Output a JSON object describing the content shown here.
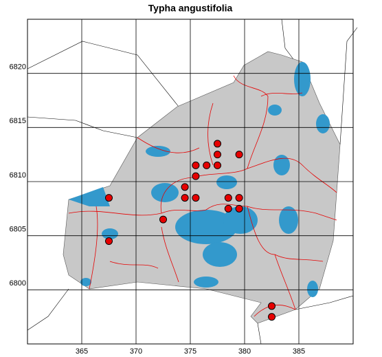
{
  "chart_data": {
    "type": "scatter",
    "title": "Typha angustifolia",
    "x": [
      367.5,
      367.5,
      372.5,
      374.5,
      374.5,
      375.5,
      375.5,
      375.5,
      376.5,
      377.5,
      377.5,
      377.5,
      379.5,
      378.5,
      378.5,
      379.5,
      379.5,
      382.5,
      382.5
    ],
    "values": [
      6808.5,
      6804.5,
      6806.5,
      6809.5,
      6808.5,
      6808.5,
      6811.5,
      6810.5,
      6811.5,
      6813.5,
      6812.5,
      6811.5,
      6812.5,
      6808.5,
      6807.5,
      6808.5,
      6807.5,
      6798.5,
      6797.5
    ],
    "color": "#e60000",
    "xlim": [
      360,
      390
    ],
    "xticks": [
      365,
      370,
      375,
      380,
      385
    ],
    "ylim": [
      6795,
      6825
    ],
    "yticks": [
      6800,
      6805,
      6810,
      6815,
      6820
    ],
    "grid": true
  }
}
